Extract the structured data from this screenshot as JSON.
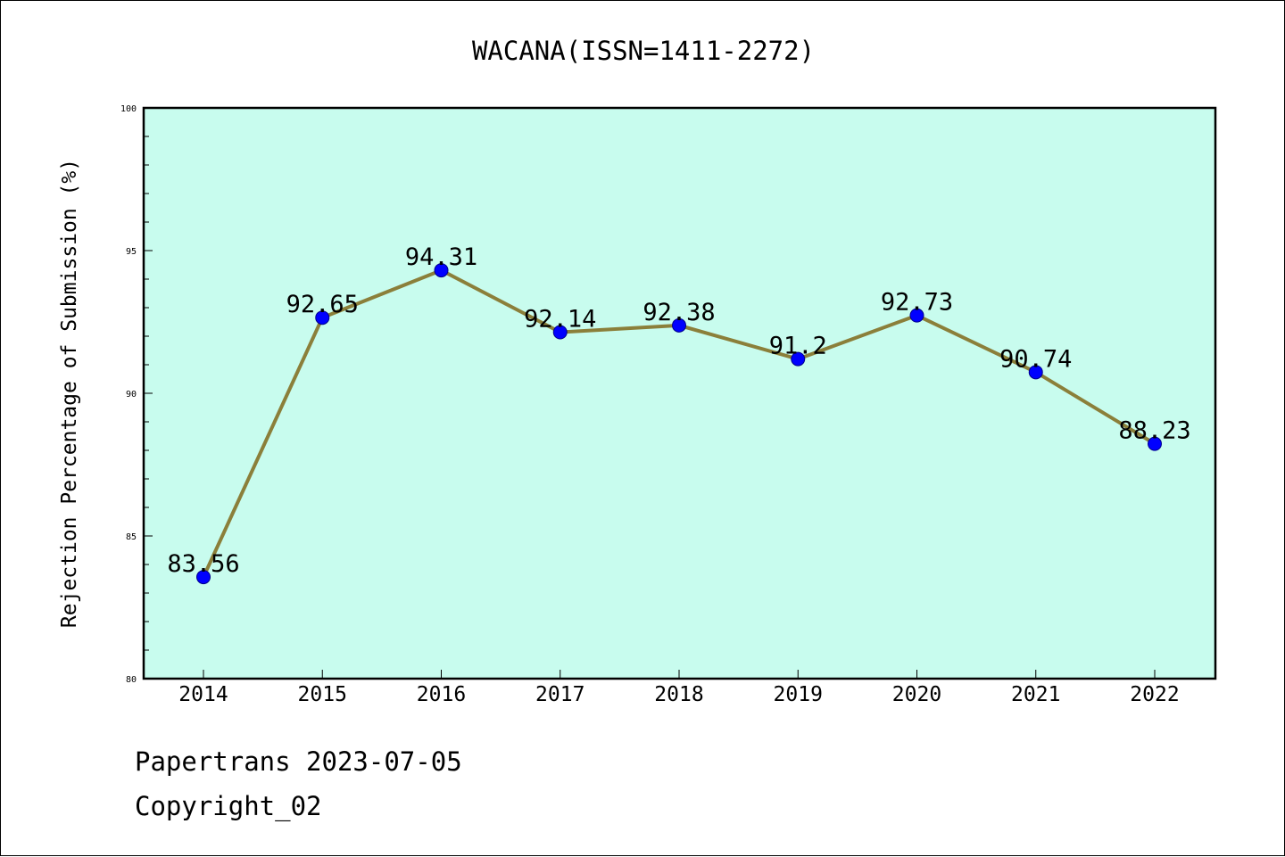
{
  "chart_data": {
    "type": "line",
    "title": "WACANA(ISSN=1411-2272)",
    "xlabel": "",
    "ylabel": "Rejection Percentage of Submission (%)",
    "categories": [
      "2014",
      "2015",
      "2016",
      "2017",
      "2018",
      "2019",
      "2020",
      "2021",
      "2022"
    ],
    "series": [
      {
        "values": [
          83.56,
          92.65,
          94.31,
          92.14,
          92.38,
          91.2,
          92.73,
          90.74,
          88.23
        ]
      }
    ],
    "data_labels": [
      "83.56",
      "92.65",
      "94.31",
      "92.14",
      "92.38",
      "91.2",
      "92.73",
      "90.74",
      "88.23"
    ],
    "ylim": [
      80,
      100
    ],
    "yticks": [
      "80",
      "85",
      "90",
      "95",
      "100"
    ],
    "grid": false,
    "colors": {
      "plot_background": "#c8fcee",
      "line": "#8b7f3a",
      "marker": "#0000ff"
    }
  },
  "footer": {
    "source": "Papertrans 2023-07-05",
    "copyright": "Copyright_02"
  }
}
